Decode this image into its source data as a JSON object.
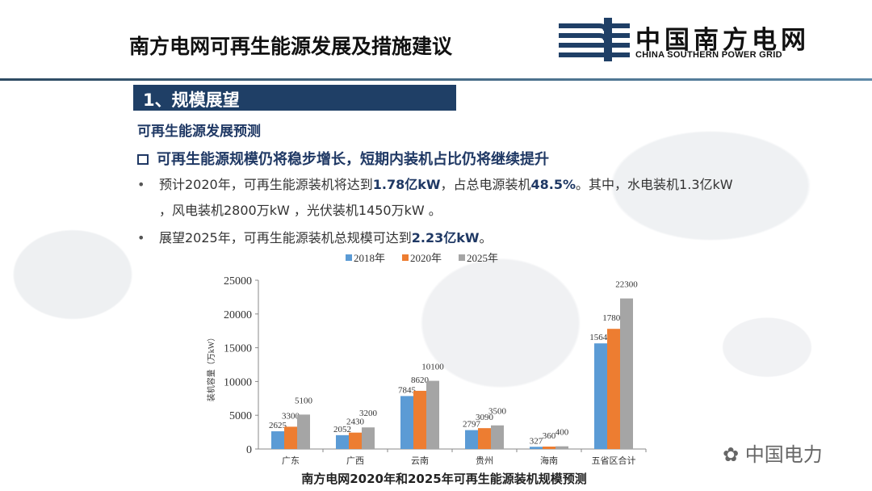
{
  "header": {
    "title": "南方电网可再生能源发展及措施建议",
    "logo": {
      "cn": "中国南方电网",
      "en": "CHINA SOUTHERN POWER GRID"
    }
  },
  "section": {
    "title": "1、规模展望"
  },
  "subheading": "可再生能源发展预测",
  "headline": "可再生能源规模仍将稳步增长，短期内装机占比仍将继续提升",
  "bullets": [
    {
      "segments": [
        "预计2020年，可再生能源装机将达到",
        "1.78亿kW",
        "，占总电源装机",
        "48.5%",
        "。其中，水电装机1.3亿kW ，风电装机2800万kW ，光伏装机1450万kW 。"
      ]
    },
    {
      "segments": [
        "展望2025年，可再生能源装机总规模可达到",
        "2.23亿kW",
        "。"
      ]
    }
  ],
  "watermark": "中国电力",
  "colors": {
    "s2018": "#5b9bd5",
    "s2020": "#ed7d31",
    "s2025": "#a5a5a5",
    "brand": "#1f3f66"
  },
  "chart_data": {
    "type": "bar",
    "title": "南方电网2020年和2025年可再生能源装机规模预测",
    "ylabel": "装机容量（万kW）",
    "xlabel": "",
    "ylim": [
      0,
      25000
    ],
    "yticks": [
      "0",
      "5000",
      "10000",
      "15000",
      "20000",
      "25000"
    ],
    "categories": [
      "广东",
      "广西",
      "云南",
      "贵州",
      "海南",
      "五省区合计"
    ],
    "legend_position": "top",
    "series": [
      {
        "name": "2018年",
        "values": [
          2625,
          2052,
          7845,
          2797,
          327,
          15647
        ]
      },
      {
        "name": "2020年",
        "values": [
          3300,
          2430,
          8620,
          3090,
          360,
          17800
        ]
      },
      {
        "name": "2025年",
        "values": [
          5100,
          3200,
          10100,
          3500,
          400,
          22300
        ]
      }
    ]
  }
}
